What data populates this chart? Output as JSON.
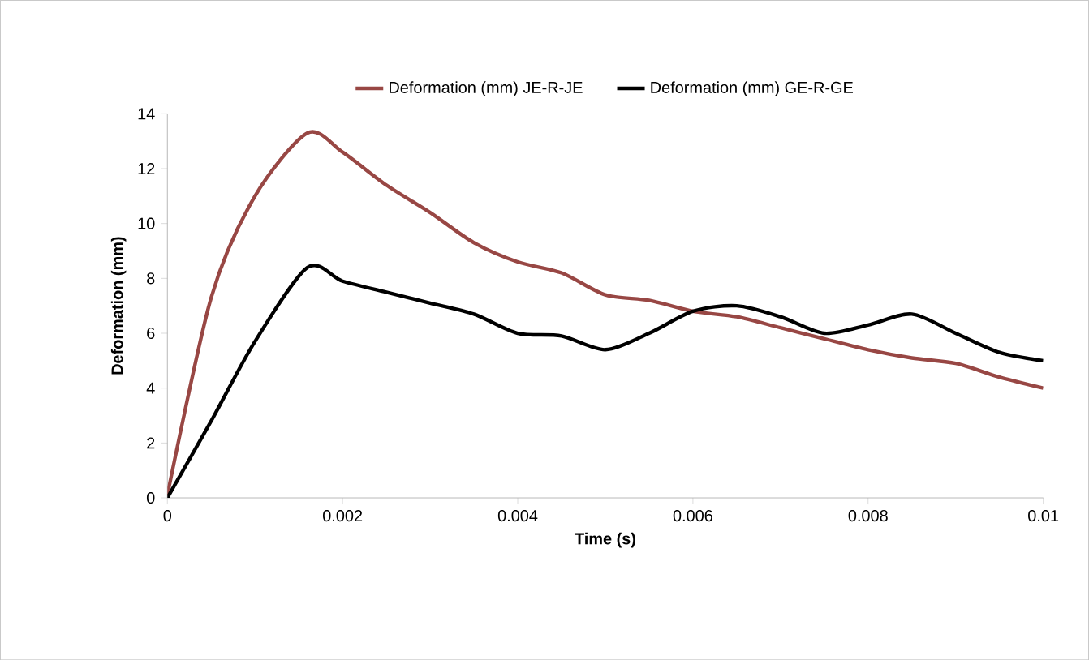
{
  "chart_data": {
    "type": "line",
    "xlabel": "Time (s)",
    "ylabel": "Deformation (mm)",
    "xlim": [
      0,
      0.01
    ],
    "xticks": [
      0,
      0.002,
      0.004,
      0.006,
      0.008,
      0.01
    ],
    "ylim": [
      0,
      14
    ],
    "yticks": [
      0,
      2,
      4,
      6,
      8,
      10,
      12,
      14
    ],
    "x": [
      0,
      0.0005,
      0.001,
      0.0016,
      0.002,
      0.0025,
      0.003,
      0.0035,
      0.004,
      0.0045,
      0.005,
      0.0055,
      0.006,
      0.0065,
      0.007,
      0.0075,
      0.008,
      0.0085,
      0.009,
      0.0095,
      0.01
    ],
    "series": [
      {
        "name": "Deformation (mm) JE-R-JE",
        "color": "#984744",
        "values": [
          0.1,
          7.3,
          11.0,
          13.3,
          12.6,
          11.4,
          10.4,
          9.3,
          8.6,
          8.2,
          7.4,
          7.2,
          6.8,
          6.6,
          6.2,
          5.8,
          5.4,
          5.1,
          4.9,
          4.4,
          4.0
        ]
      },
      {
        "name": "Deformation (mm) GE-R-GE",
        "color": "#000000",
        "values": [
          0,
          2.8,
          5.7,
          8.4,
          7.9,
          7.5,
          7.1,
          6.7,
          6.0,
          5.9,
          5.4,
          6.0,
          6.8,
          7.0,
          6.6,
          6.0,
          6.3,
          6.7,
          6.0,
          5.3,
          5.0
        ]
      }
    ],
    "legend": "top",
    "grid": false,
    "line_style": "solid",
    "marker": "none"
  }
}
